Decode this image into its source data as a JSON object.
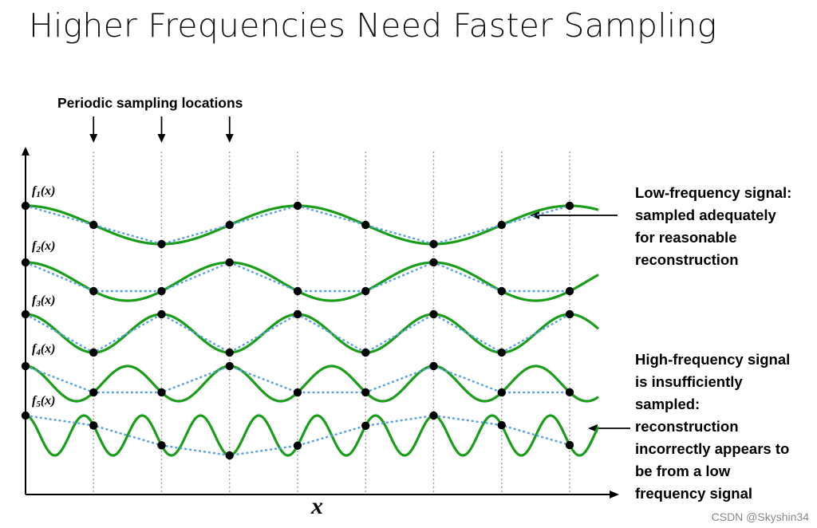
{
  "title": "Higher Frequencies Need Faster Sampling",
  "sampling_label": "Periodic sampling locations",
  "low_note": [
    "Low-frequency signal:",
    "sampled adequately",
    "for reasonable",
    "reconstruction"
  ],
  "high_note": [
    "High-frequency signal",
    "is insufficiently",
    "sampled:",
    "reconstruction",
    "incorrectly appears to",
    "be from a low",
    "frequency signal"
  ],
  "x_axis_label": "x",
  "watermark": "CSDN @Skyshin34",
  "signals": [
    {
      "name": "f",
      "sub": "1",
      "arg": "(x)"
    },
    {
      "name": "f",
      "sub": "2",
      "arg": "(x)"
    },
    {
      "name": "f",
      "sub": "3",
      "arg": "(x)"
    },
    {
      "name": "f",
      "sub": "4",
      "arg": "(x)"
    },
    {
      "name": "f",
      "sub": "5",
      "arg": "(x)"
    }
  ],
  "colors": {
    "signal": "#1a9e1a",
    "reconstruction": "#5aa0e6",
    "sample": "#000000",
    "axis": "#000000",
    "gridline": "#a0a0a0"
  }
}
